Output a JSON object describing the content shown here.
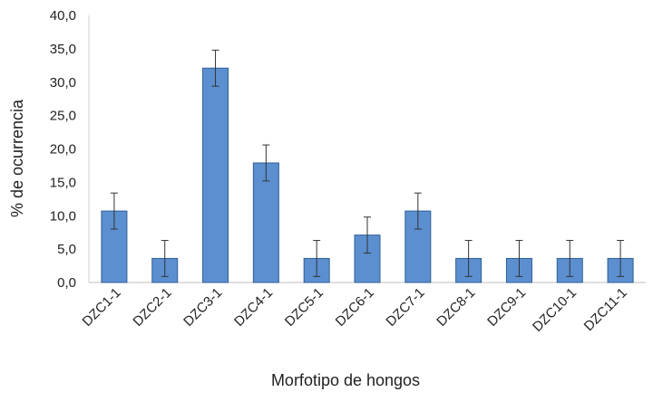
{
  "chart_data": {
    "type": "bar",
    "xlabel": "Morfotipo de hongos",
    "ylabel": "% de ocurrencia",
    "ylim": [
      0,
      40
    ],
    "yticks": [
      "0,0",
      "5,0",
      "10,0",
      "15,0",
      "20,0",
      "25,0",
      "30,0",
      "35,0",
      "40,0"
    ],
    "categories": [
      "DZC1-1",
      "DZC2-1",
      "DZC3-1",
      "DZC4-1",
      "DZC5-1",
      "DZC6-1",
      "DZC7-1",
      "DZC8-1",
      "DZC9-1",
      "DZC10-1",
      "DZC11-1"
    ],
    "values": [
      10.7,
      3.6,
      32.1,
      17.9,
      3.6,
      7.1,
      10.7,
      3.6,
      3.6,
      3.6,
      3.6
    ],
    "errors": [
      2.7,
      2.7,
      2.7,
      2.7,
      2.7,
      2.7,
      2.7,
      2.7,
      2.7,
      2.7,
      2.7
    ],
    "bar_color": "#5b8fd0",
    "bar_stroke": "#2f5f96",
    "grid": false,
    "legend": "none"
  }
}
